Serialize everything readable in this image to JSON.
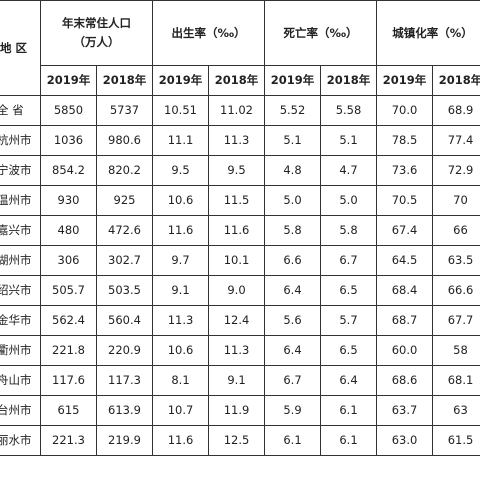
{
  "header": {
    "region": "地 区",
    "population_line1": "年末常住人口",
    "population_line2": "（万人）",
    "birth_rate": "出生率（‰）",
    "death_rate": "死亡率（‰）",
    "urbanization": "城镇化率（%）",
    "year_2019": "2019年",
    "year_2018": "2018年"
  },
  "rows": [
    {
      "region": "全 省",
      "pop_2019": "5850",
      "pop_2018": "5737",
      "birth_2019": "10.51",
      "birth_2018": "11.02",
      "death_2019": "5.52",
      "death_2018": "5.58",
      "urban_2019": "70.0",
      "urban_2018": "68.9"
    },
    {
      "region": "杭州市",
      "pop_2019": "1036",
      "pop_2018": "980.6",
      "birth_2019": "11.1",
      "birth_2018": "11.3",
      "death_2019": "5.1",
      "death_2018": "5.1",
      "urban_2019": "78.5",
      "urban_2018": "77.4"
    },
    {
      "region": "宁波市",
      "pop_2019": "854.2",
      "pop_2018": "820.2",
      "birth_2019": "9.5",
      "birth_2018": "9.5",
      "death_2019": "4.8",
      "death_2018": "4.7",
      "urban_2019": "73.6",
      "urban_2018": "72.9"
    },
    {
      "region": "温州市",
      "pop_2019": "930",
      "pop_2018": "925",
      "birth_2019": "10.6",
      "birth_2018": "11.5",
      "death_2019": "5.0",
      "death_2018": "5.0",
      "urban_2019": "70.5",
      "urban_2018": "70"
    },
    {
      "region": "嘉兴市",
      "pop_2019": "480",
      "pop_2018": "472.6",
      "birth_2019": "11.6",
      "birth_2018": "11.6",
      "death_2019": "5.8",
      "death_2018": "5.8",
      "urban_2019": "67.4",
      "urban_2018": "66"
    },
    {
      "region": "湖州市",
      "pop_2019": "306",
      "pop_2018": "302.7",
      "birth_2019": "9.7",
      "birth_2018": "10.1",
      "death_2019": "6.6",
      "death_2018": "6.7",
      "urban_2019": "64.5",
      "urban_2018": "63.5"
    },
    {
      "region": "绍兴市",
      "pop_2019": "505.7",
      "pop_2018": "503.5",
      "birth_2019": "9.1",
      "birth_2018": "9.0",
      "death_2019": "6.4",
      "death_2018": "6.5",
      "urban_2019": "68.4",
      "urban_2018": "66.6"
    },
    {
      "region": "金华市",
      "pop_2019": "562.4",
      "pop_2018": "560.4",
      "birth_2019": "11.3",
      "birth_2018": "12.4",
      "death_2019": "5.6",
      "death_2018": "5.7",
      "urban_2019": "68.7",
      "urban_2018": "67.7"
    },
    {
      "region": "衢州市",
      "pop_2019": "221.8",
      "pop_2018": "220.9",
      "birth_2019": "10.6",
      "birth_2018": "11.3",
      "death_2019": "6.4",
      "death_2018": "6.5",
      "urban_2019": "60.0",
      "urban_2018": "58"
    },
    {
      "region": "舟山市",
      "pop_2019": "117.6",
      "pop_2018": "117.3",
      "birth_2019": "8.1",
      "birth_2018": "9.1",
      "death_2019": "6.7",
      "death_2018": "6.4",
      "urban_2019": "68.6",
      "urban_2018": "68.1"
    },
    {
      "region": "台州市",
      "pop_2019": "615",
      "pop_2018": "613.9",
      "birth_2019": "10.7",
      "birth_2018": "11.9",
      "death_2019": "5.9",
      "death_2018": "6.1",
      "urban_2019": "63.7",
      "urban_2018": "63"
    },
    {
      "region": "丽水市",
      "pop_2019": "221.3",
      "pop_2018": "219.9",
      "birth_2019": "11.6",
      "birth_2018": "12.5",
      "death_2019": "6.1",
      "death_2018": "6.1",
      "urban_2019": "63.0",
      "urban_2018": "61.5"
    }
  ]
}
